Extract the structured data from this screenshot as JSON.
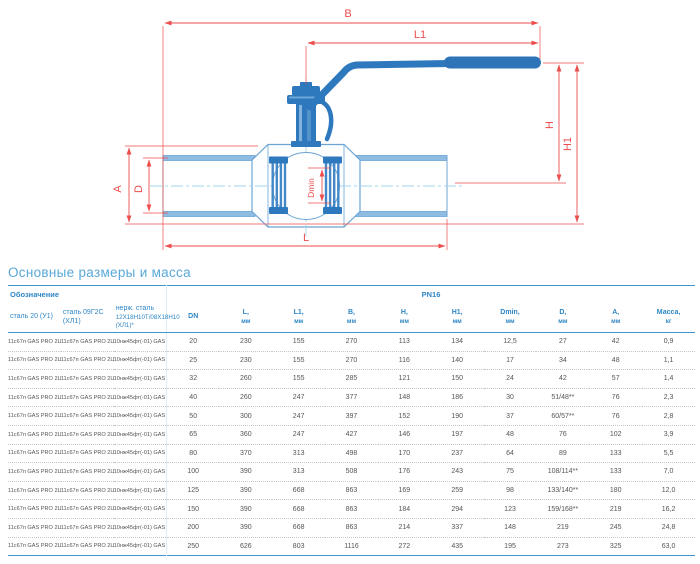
{
  "title": "Основные размеры и масса",
  "diagram": {
    "name": "ball-valve-dimension-drawing",
    "dim_labels": {
      "B": "B",
      "L1": "L1",
      "L": "L",
      "A": "A",
      "D": "D",
      "Dmin": "Dmin",
      "H": "H",
      "H1": "H1"
    },
    "colors": {
      "dimension": "#ee4d4d",
      "valve_solid": "#2e78bd",
      "valve_outline": "#6ca4d4",
      "centerline": "#a5d4ee",
      "wall_fill": "#8fbce2"
    }
  },
  "table": {
    "group_headers": {
      "designation": "Обозначение",
      "pressure": "PN16"
    },
    "columns": [
      {
        "line1": "сталь 20 (У1)",
        "line2": ""
      },
      {
        "line1": "сталь 09Г2С (ХЛ1)",
        "line2": ""
      },
      {
        "line1": "нерж. сталь",
        "line2": "12Х18Н10Т/08Х18Н10 (ХЛ1)*"
      },
      {
        "line1": "DN",
        "line2": ""
      },
      {
        "line1": "L,",
        "line2": "мм"
      },
      {
        "line1": "L1,",
        "line2": "мм"
      },
      {
        "line1": "B,",
        "line2": "мм"
      },
      {
        "line1": "H,",
        "line2": "мм"
      },
      {
        "line1": "H1,",
        "line2": "мм"
      },
      {
        "line1": "Dmin,",
        "line2": "мм"
      },
      {
        "line1": "D,",
        "line2": "мм"
      },
      {
        "line1": "A,",
        "line2": "мм"
      },
      {
        "line1": "Масса,",
        "line2": "кг"
      }
    ],
    "rows": [
      [
        "11с67п GAS PRO 2ЦЛ.00.1.016.020/015",
        "11с67п GAS PRO 2ЦЛ.01.1.016.020/015",
        "10нж45фт(-01) GAS PRO 2ЦЛ.01.1.016.020/015",
        "20",
        "230",
        "155",
        "270",
        "113",
        "134",
        "12,5",
        "27",
        "42",
        "0,9"
      ],
      [
        "11с67п GAS PRO 2ЦЛ.00.1.016.025/020",
        "11с67п GAS PRO 2ЦЛ.01.1.016.025/020",
        "10нж45фт(-01) GAS PRO 2ЦЛ.01.1.016.025/020",
        "25",
        "230",
        "155",
        "270",
        "116",
        "140",
        "17",
        "34",
        "48",
        "1,1"
      ],
      [
        "11с67п GAS PRO 2ЦЛ.00.1.016.032/025",
        "11с67п GAS PRO 2ЦЛ.01.1.016.032/025",
        "10нж45фт(-01) GAS PRO 2ЦЛ.01.1.016.032/025",
        "32",
        "260",
        "155",
        "285",
        "121",
        "150",
        "24",
        "42",
        "57",
        "1,4"
      ],
      [
        "11с67п GAS PRO 2ЦЛ.00.1.016.040/032",
        "11с67п GAS PRO 2ЦЛ.01.1.016.040/032",
        "10нж45фт(-01) GAS PRO 2ЦЛ.01.1.016.040/032",
        "40",
        "260",
        "247",
        "377",
        "148",
        "186",
        "30",
        "51/48**",
        "76",
        "2,3"
      ],
      [
        "11с67п GAS PRO 2ЦЛ.00.1.016.050/040",
        "11с67п GAS PRO 2ЦЛ.01.1.016.050/040",
        "10нж45фт(-01) GAS PRO 2ЦЛ.01.1.016.050/040",
        "50",
        "300",
        "247",
        "397",
        "152",
        "190",
        "37",
        "60/57**",
        "76",
        "2,8"
      ],
      [
        "11с67п GAS PRO 2ЦЛ.00.1.016.065/050",
        "11с67п GAS PRO 2ЦЛ.01.1.016.065/050",
        "10нж45фт(-01) GAS PRO 2ЦЛ.01.1.016.065/050",
        "65",
        "360",
        "247",
        "427",
        "146",
        "197",
        "48",
        "76",
        "102",
        "3,9"
      ],
      [
        "11с67п GAS PRO 2ЦЛ.00.1.016.080/065",
        "11с67п GAS PRO 2ЦЛ.01.1.016.080/065",
        "10нж45фт(-01) GAS PRO 2ЦЛ.01.1.016.080/065",
        "80",
        "370",
        "313",
        "498",
        "170",
        "237",
        "64",
        "89",
        "133",
        "5,5"
      ],
      [
        "11с67п GAS PRO 2ЦЛ.00.1.016.100/080",
        "11с67п GAS PRO 2ЦЛ.01.1.016.100/080",
        "10нж45фт(-01) GAS PRO 2ЦЛ.01.1.016.100/080",
        "100",
        "390",
        "313",
        "508",
        "176",
        "243",
        "75",
        "108/114**",
        "133",
        "7,0"
      ],
      [
        "11с67п GAS PRO 2ЦЛ.00.1.016.125/100",
        "11с67п GAS PRO 2ЦЛ.01.1.016.125/100",
        "10нж45фт(-01) GAS PRO 2ЦЛ.01.1.016.125/100",
        "125",
        "390",
        "668",
        "863",
        "169",
        "259",
        "98",
        "133/140**",
        "180",
        "12,0"
      ],
      [
        "11с67п GAS PRO 2ЦЛ.00.1.016.150/125",
        "11с67п GAS PRO 2ЦЛ.01.1.016.150/125",
        "10нж45фт(-01) GAS PRO 2ЦЛ.01.1.016.150/125",
        "150",
        "390",
        "668",
        "863",
        "184",
        "294",
        "123",
        "159/168**",
        "219",
        "16,2"
      ],
      [
        "11с67п GAS PRO 2ЦЛ.00.1.016.200/150",
        "11с67п GAS PRO 2ЦЛ.01.1.016.200/150",
        "10нж45фт(-01) GAS PRO 2ЦЛ.01.1.016.200/150",
        "200",
        "390",
        "668",
        "863",
        "214",
        "337",
        "148",
        "219",
        "245",
        "24,8"
      ],
      [
        "11с67п GAS PRO 2ЦЛ.00.1.016.250/200",
        "11с67п GAS PRO 2ЦЛ.01.1.016.250/200",
        "10нж45фт(-01) GAS PRO 2ЦЛ.01.1.016.250/200",
        "250",
        "626",
        "803",
        "1116",
        "272",
        "435",
        "195",
        "273",
        "325",
        "63,0"
      ]
    ]
  }
}
